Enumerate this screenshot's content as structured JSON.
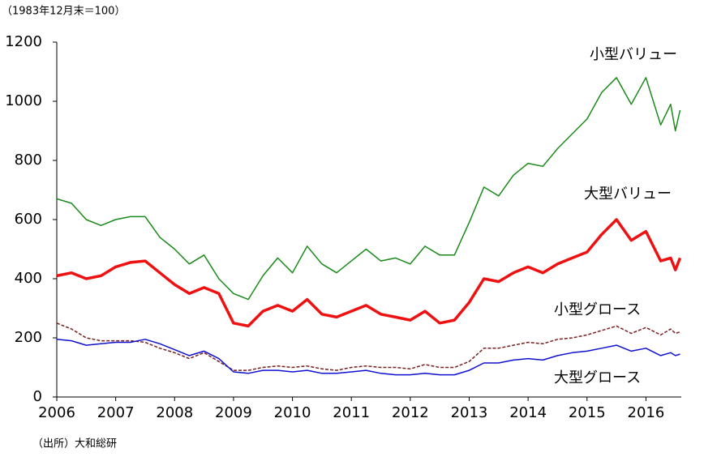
{
  "chart_data": {
    "type": "line",
    "subtitle": "（1983年12月末＝100）",
    "source": "（出所）大和総研",
    "x": [
      2006,
      2006.25,
      2006.5,
      2006.75,
      2007,
      2007.25,
      2007.5,
      2007.75,
      2008,
      2008.25,
      2008.5,
      2008.75,
      2009,
      2009.25,
      2009.5,
      2009.75,
      2010,
      2010.25,
      2010.5,
      2010.75,
      2011,
      2011.25,
      2011.5,
      2011.75,
      2012,
      2012.25,
      2012.5,
      2012.75,
      2013,
      2013.25,
      2013.5,
      2013.75,
      2014,
      2014.25,
      2014.5,
      2014.75,
      2015,
      2015.25,
      2015.5,
      2015.75,
      2016,
      2016.25,
      2016.42,
      2016.5,
      2016.58
    ],
    "series": [
      {
        "name": "小型バリュー",
        "color": "#1a8a1a",
        "values": [
          670,
          655,
          600,
          580,
          600,
          610,
          610,
          540,
          500,
          450,
          480,
          400,
          350,
          330,
          410,
          470,
          420,
          510,
          450,
          420,
          460,
          500,
          460,
          470,
          450,
          510,
          480,
          480,
          590,
          710,
          680,
          750,
          790,
          780,
          840,
          890,
          940,
          1030,
          1080,
          990,
          1080,
          920,
          990,
          900,
          970
        ]
      },
      {
        "name": "大型バリュー",
        "color": "#ee1111",
        "values": [
          410,
          420,
          400,
          410,
          440,
          455,
          460,
          420,
          380,
          350,
          370,
          350,
          250,
          240,
          290,
          310,
          290,
          330,
          280,
          270,
          290,
          310,
          280,
          270,
          260,
          290,
          250,
          260,
          320,
          400,
          390,
          420,
          440,
          420,
          450,
          470,
          490,
          550,
          600,
          530,
          560,
          460,
          470,
          430,
          470
        ]
      },
      {
        "name": "小型グロース",
        "color": "#7a1f1f",
        "dashed": true,
        "values": [
          250,
          230,
          200,
          190,
          190,
          190,
          185,
          165,
          150,
          130,
          150,
          120,
          90,
          90,
          100,
          105,
          100,
          105,
          95,
          90,
          100,
          105,
          100,
          100,
          95,
          110,
          100,
          100,
          120,
          165,
          165,
          175,
          185,
          180,
          195,
          200,
          210,
          225,
          240,
          215,
          235,
          210,
          230,
          215,
          220
        ]
      },
      {
        "name": "大型グロース",
        "color": "#1010d0",
        "values": [
          195,
          190,
          175,
          180,
          185,
          185,
          195,
          180,
          160,
          140,
          155,
          130,
          85,
          80,
          90,
          90,
          85,
          90,
          80,
          80,
          85,
          90,
          80,
          75,
          75,
          80,
          75,
          75,
          90,
          115,
          115,
          125,
          130,
          125,
          140,
          150,
          155,
          165,
          175,
          155,
          165,
          140,
          150,
          140,
          145
        ]
      }
    ],
    "xlim": [
      2006,
      2016.6
    ],
    "xticks": [
      2006,
      2007,
      2008,
      2009,
      2010,
      2011,
      2012,
      2013,
      2014,
      2015,
      2016
    ],
    "ylim": [
      0,
      1200
    ],
    "yticks": [
      0,
      200,
      400,
      600,
      800,
      1000,
      1200
    ]
  }
}
